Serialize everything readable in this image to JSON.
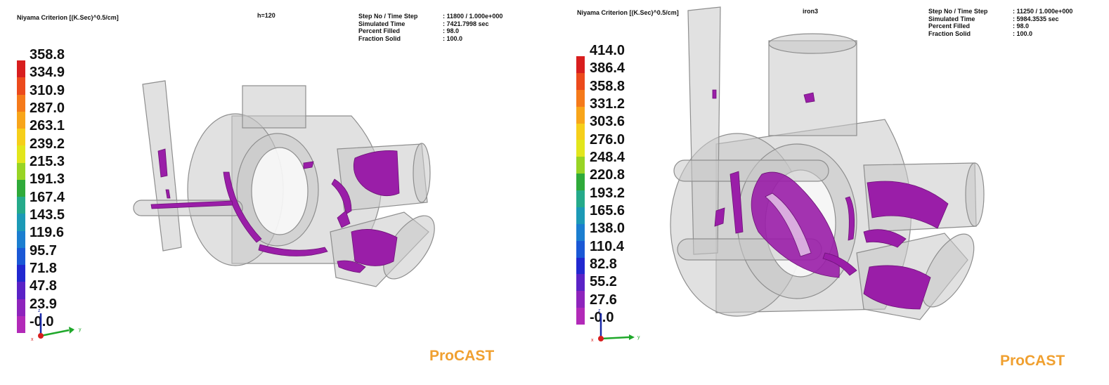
{
  "panels": [
    {
      "criterion_label": "Niyama Criterion [(K.Sec)^0.5/cm]",
      "case_label": "h=120",
      "info": [
        {
          "label": "Step No / Time Step",
          "value": ": 11800  /  1.000e+000"
        },
        {
          "label": "Simulated Time",
          "value": ": 7421.7998  sec"
        },
        {
          "label": "Percent Filled",
          "value": ": 98.0"
        },
        {
          "label": "Fraction Solid",
          "value": ": 100.0"
        }
      ],
      "legend_ticks": [
        "358.8",
        "334.9",
        "310.9",
        "287.0",
        "263.1",
        "239.2",
        "215.3",
        "191.3",
        "167.4",
        "143.5",
        "119.6",
        "95.7",
        "71.8",
        "47.8",
        "23.9",
        "-0.0"
      ],
      "axes": {
        "x": "x",
        "y": "y",
        "z": "z"
      },
      "brand": "ProCAST"
    },
    {
      "criterion_label": "Niyama Criterion [(K.Sec)^0.5/cm]",
      "case_label": "iron3",
      "info": [
        {
          "label": "Step No / Time Step",
          "value": ": 11250  /  1.000e+000"
        },
        {
          "label": "Simulated Time",
          "value": ": 5984.3535  sec"
        },
        {
          "label": "Percent Filled",
          "value": ": 98.0"
        },
        {
          "label": "Fraction Solid",
          "value": ": 100.0"
        }
      ],
      "legend_ticks": [
        "414.0",
        "386.4",
        "358.8",
        "331.2",
        "303.6",
        "276.0",
        "248.4",
        "220.8",
        "193.2",
        "165.6",
        "138.0",
        "110.4",
        "82.8",
        "55.2",
        "27.6",
        "-0.0"
      ],
      "axes": {
        "x": "x",
        "y": "y",
        "z": "z"
      },
      "brand": "ProCAST"
    }
  ],
  "colors": {
    "colorbar": [
      "#d81e1e",
      "#ec4a1c",
      "#f57a1a",
      "#f8a51a",
      "#f6cf1a",
      "#e2e61c",
      "#98d424",
      "#2faa3a",
      "#25aa8a",
      "#1c9ab6",
      "#1b7ed0",
      "#1a58d6",
      "#2128d0",
      "#5a22c6",
      "#8e24bc",
      "#b22ab8"
    ],
    "defect": "#9a1ea8",
    "shell": "#c8c8c8",
    "shell_stroke": "#8e8e8e",
    "brand": "#f0a030"
  }
}
